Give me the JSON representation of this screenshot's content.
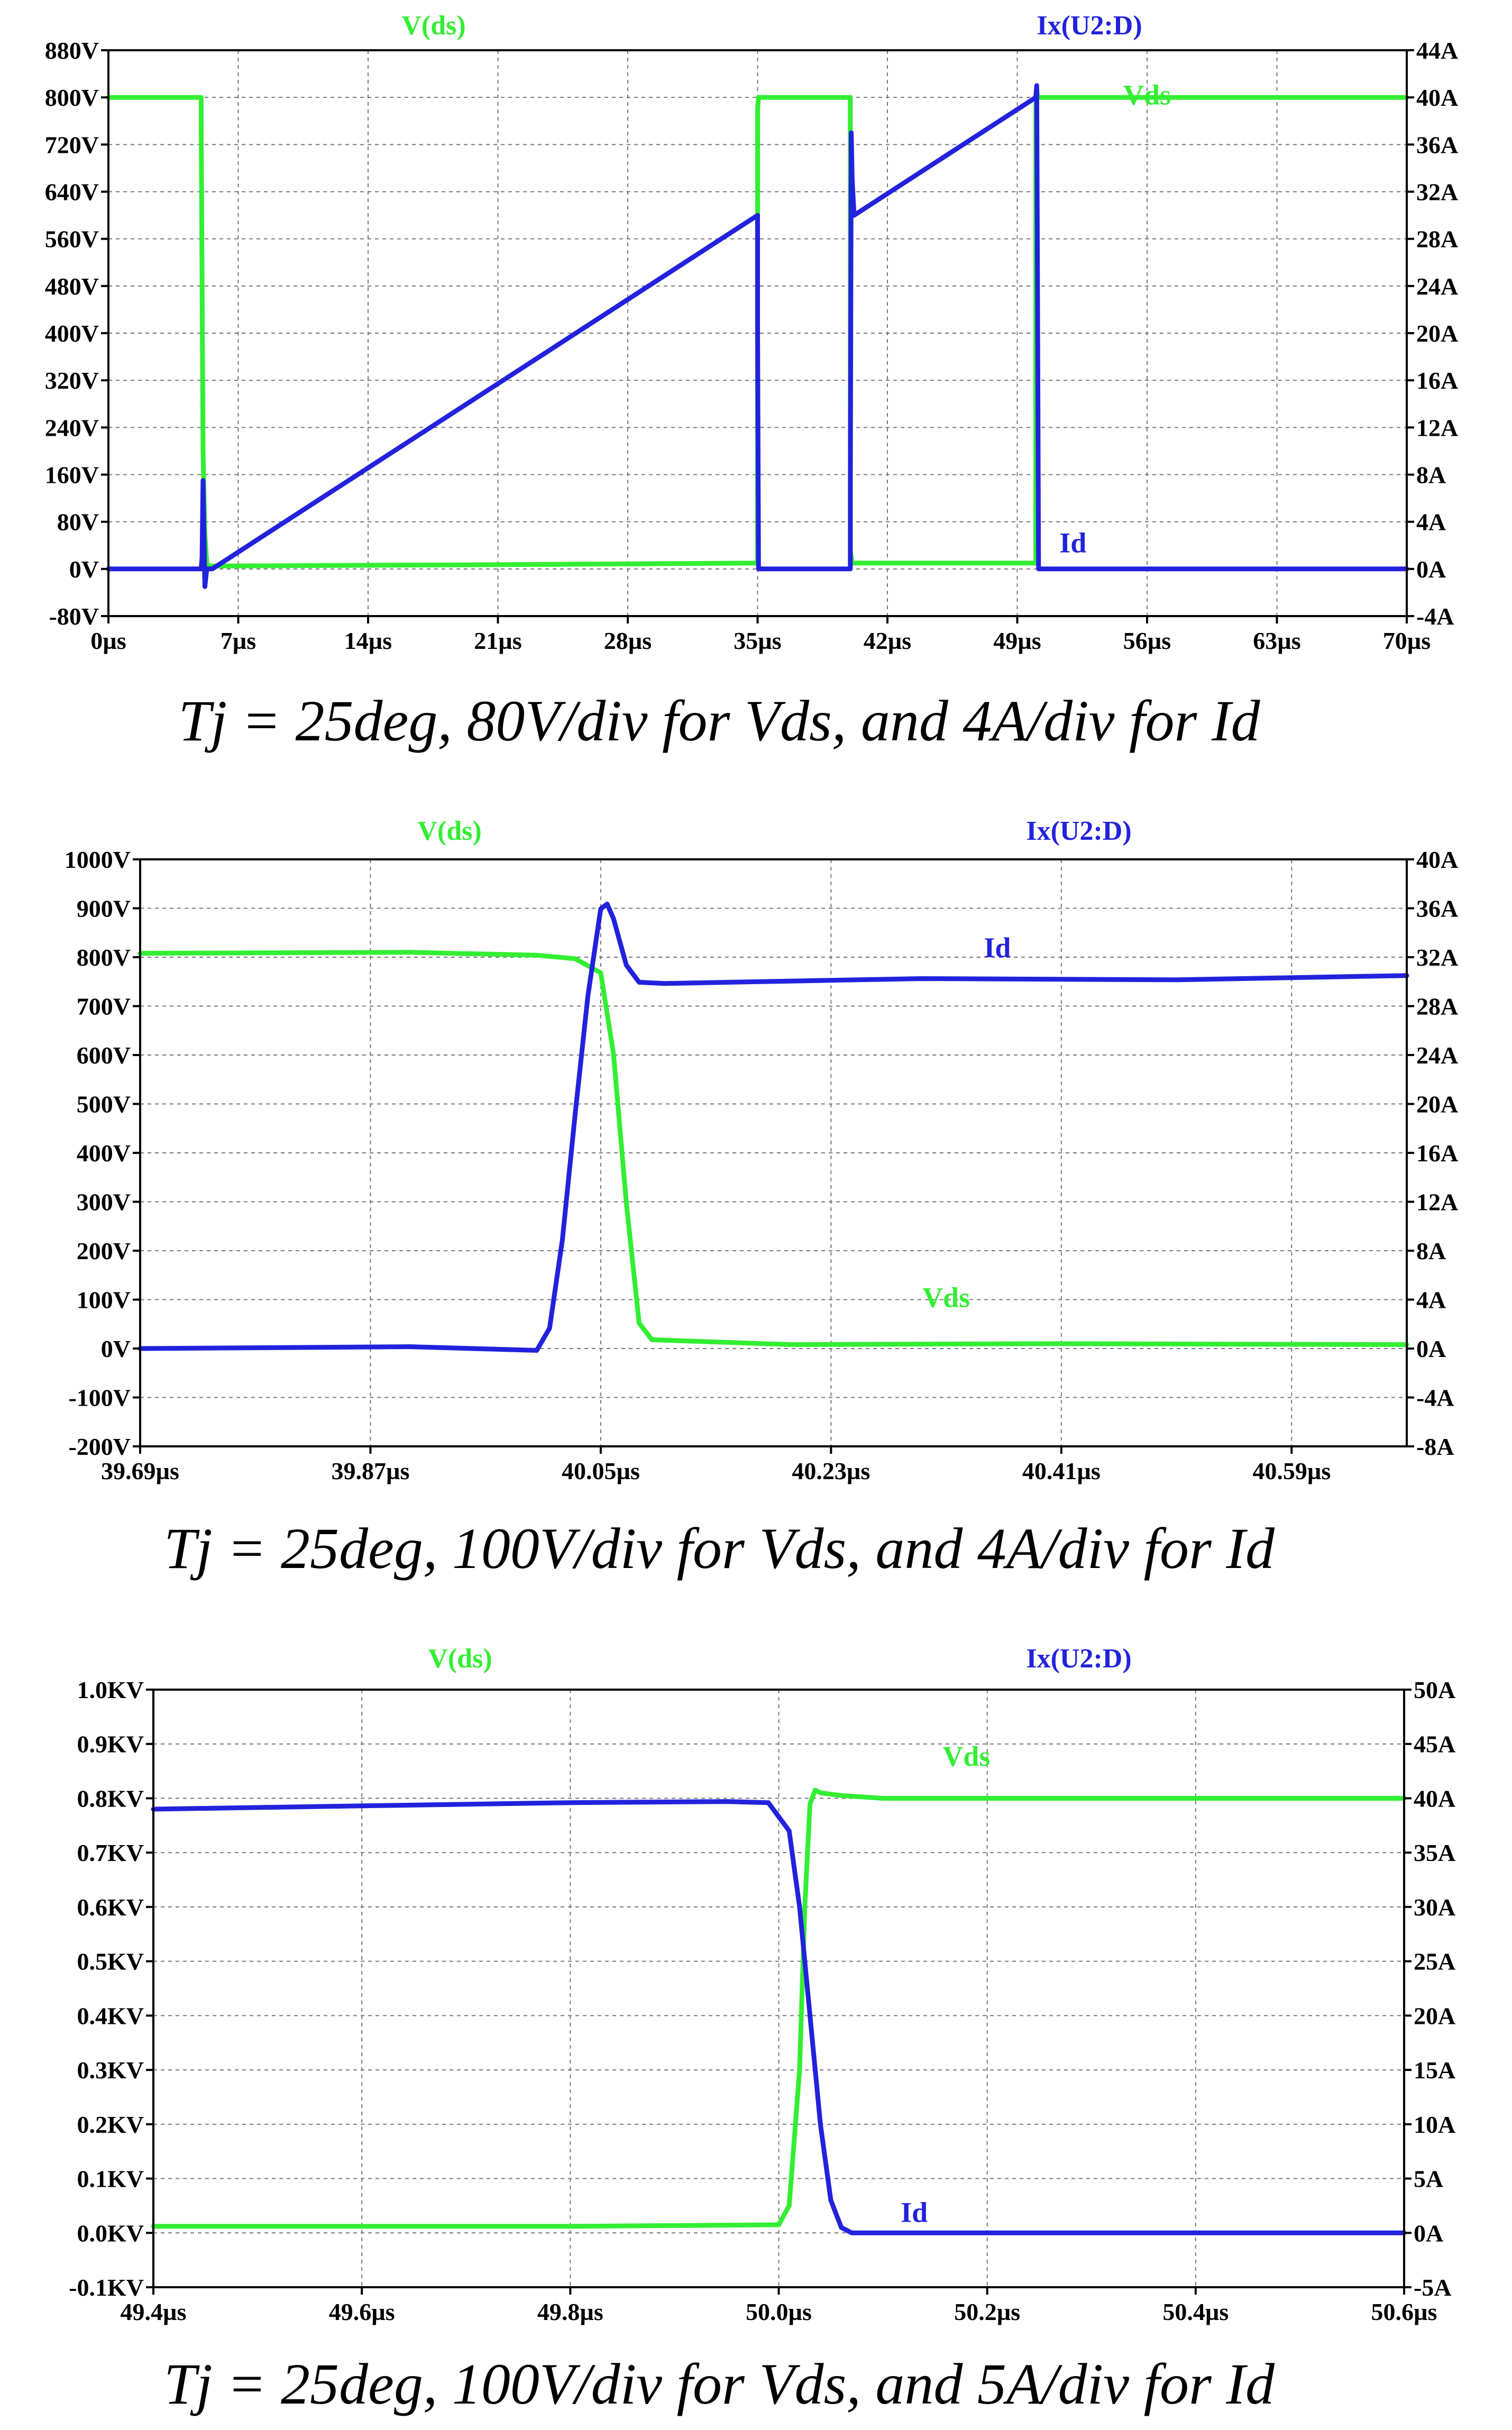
{
  "chart_data": [
    {
      "type": "line",
      "title": "Tj = 25deg, 80V/div for Vds, and 4A/div for Id",
      "legend": [
        "V(ds)",
        "Ix(U2:D)"
      ],
      "colors": {
        "vds": "#33ee33",
        "id": "#2222dd",
        "grid": "#777777",
        "axis": "#000000"
      },
      "x": {
        "min": 0,
        "max": 70,
        "ticks": [
          0,
          7,
          14,
          21,
          28,
          35,
          42,
          49,
          56,
          63,
          70
        ],
        "tick_labels": [
          "0µs",
          "7µs",
          "14µs",
          "21µs",
          "28µs",
          "35µs",
          "42µs",
          "49µs",
          "56µs",
          "63µs",
          "70µs"
        ]
      },
      "y_left": {
        "min": -80,
        "max": 880,
        "ticks": [
          -80,
          0,
          80,
          160,
          240,
          320,
          400,
          480,
          560,
          640,
          720,
          800,
          880
        ],
        "tick_labels": [
          "-80V",
          "0V",
          "80V",
          "160V",
          "240V",
          "320V",
          "400V",
          "480V",
          "560V",
          "640V",
          "720V",
          "800V",
          "880V"
        ]
      },
      "y_right": {
        "min": -4,
        "max": 44,
        "ticks": [
          -4,
          0,
          4,
          8,
          12,
          16,
          20,
          24,
          28,
          32,
          36,
          40,
          44
        ],
        "tick_labels": [
          "-4A",
          "0A",
          "4A",
          "8A",
          "12A",
          "16A",
          "20A",
          "24A",
          "28A",
          "32A",
          "36A",
          "40A",
          "44A"
        ]
      },
      "series": [
        {
          "name": "Vds",
          "axis": "left",
          "x": [
            0,
            5.0,
            5.0,
            5.1,
            5.2,
            5.3,
            5.4,
            6.0,
            20,
            35.0,
            35.0,
            35.05,
            40.0,
            40.0,
            40.1,
            50.0,
            50.0,
            50.05,
            50.1,
            70
          ],
          "y": [
            800,
            800,
            760,
            200,
            60,
            10,
            5,
            5,
            7,
            10,
            780,
            800,
            800,
            30,
            10,
            10,
            780,
            815,
            800,
            800
          ]
        },
        {
          "name": "Id",
          "axis": "right",
          "x": [
            0,
            5.0,
            5.05,
            5.1,
            5.2,
            5.3,
            5.6,
            35.0,
            35.0,
            35.05,
            40.0,
            40.0,
            40.05,
            40.1,
            40.2,
            50.0,
            50.05,
            50.1,
            50.15,
            70
          ],
          "y": [
            0,
            0,
            1,
            7.5,
            -1.5,
            0,
            0,
            30,
            20,
            0,
            0,
            7,
            37,
            33,
            30,
            40,
            41,
            20,
            0,
            0
          ]
        }
      ],
      "annotations": [
        {
          "text": "Vds",
          "x": 56,
          "y": 788,
          "axis": "left",
          "color": "vds"
        },
        {
          "text": "Id",
          "x": 52,
          "y": 1.4,
          "axis": "right",
          "color": "id"
        }
      ]
    },
    {
      "type": "line",
      "title": "Tj = 25deg, 100V/div for Vds, and 4A/div for Id",
      "legend": [
        "V(ds)",
        "Ix(U2:D)"
      ],
      "colors": {
        "vds": "#33ee33",
        "id": "#2222dd",
        "grid": "#777777",
        "axis": "#000000"
      },
      "x": {
        "min": 39.69,
        "max": 40.68,
        "ticks": [
          39.69,
          39.87,
          40.05,
          40.23,
          40.41,
          40.59
        ],
        "tick_labels": [
          "39.69µs",
          "39.87µs",
          "40.05µs",
          "40.23µs",
          "40.41µs",
          "40.59µs"
        ]
      },
      "y_left": {
        "min": -200,
        "max": 1000,
        "ticks": [
          -200,
          -100,
          0,
          100,
          200,
          300,
          400,
          500,
          600,
          700,
          800,
          900,
          1000
        ],
        "tick_labels": [
          "-200V",
          "-100V",
          "0V",
          "100V",
          "200V",
          "300V",
          "400V",
          "500V",
          "600V",
          "700V",
          "800V",
          "900V",
          "1000V"
        ]
      },
      "y_right": {
        "min": -8,
        "max": 40,
        "ticks": [
          -8,
          -4,
          0,
          4,
          8,
          12,
          16,
          20,
          24,
          28,
          32,
          36,
          40
        ],
        "tick_labels": [
          "-8A",
          "-4A",
          "0A",
          "4A",
          "8A",
          "12A",
          "16A",
          "20A",
          "24A",
          "28A",
          "32A",
          "36A",
          "40A"
        ]
      },
      "series": [
        {
          "name": "Vds",
          "axis": "left",
          "x": [
            39.69,
            39.9,
            40.0,
            40.03,
            40.05,
            40.06,
            40.07,
            40.08,
            40.09,
            40.1,
            40.2,
            40.4,
            40.68
          ],
          "y": [
            808,
            808,
            806,
            795,
            770,
            600,
            300,
            50,
            20,
            15,
            10,
            8,
            8
          ],
          "jitter": 2
        },
        {
          "name": "Id",
          "axis": "right",
          "x": [
            39.69,
            39.9,
            40.0,
            40.01,
            40.02,
            40.03,
            40.04,
            40.05,
            40.055,
            40.06,
            40.07,
            40.08,
            40.1,
            40.3,
            40.5,
            40.68
          ],
          "y": [
            0,
            0,
            0,
            1.5,
            9,
            19,
            29,
            35.8,
            36.5,
            35,
            31.5,
            29.8,
            30,
            30.1,
            30.3,
            30.5
          ],
          "jitter": 0.15
        }
      ],
      "annotations": [
        {
          "text": "Id",
          "x": 40.36,
          "y": 32,
          "axis": "right",
          "color": "id"
        },
        {
          "text": "Vds",
          "x": 40.32,
          "y": 85,
          "axis": "left",
          "color": "vds"
        }
      ]
    },
    {
      "type": "line",
      "title": "Tj = 25deg, 100V/div for Vds, and 5A/div for Id",
      "legend": [
        "V(ds)",
        "Ix(U2:D)"
      ],
      "colors": {
        "vds": "#33ee33",
        "id": "#2222dd",
        "grid": "#777777",
        "axis": "#000000"
      },
      "x": {
        "min": 49.4,
        "max": 50.6,
        "ticks": [
          49.4,
          49.6,
          49.8,
          50.0,
          50.2,
          50.4,
          50.6
        ],
        "tick_labels": [
          "49.4µs",
          "49.6µs",
          "49.8µs",
          "50.0µs",
          "50.2µs",
          "50.4µs",
          "50.6µs"
        ]
      },
      "y_left": {
        "min": -0.1,
        "max": 1.0,
        "ticks": [
          -0.1,
          0.0,
          0.1,
          0.2,
          0.3,
          0.4,
          0.5,
          0.6,
          0.7,
          0.8,
          0.9,
          1.0
        ],
        "tick_labels": [
          "-0.1KV",
          "0.0KV",
          "0.1KV",
          "0.2KV",
          "0.3KV",
          "0.4KV",
          "0.5KV",
          "0.6KV",
          "0.7KV",
          "0.8KV",
          "0.9KV",
          "1.0KV"
        ]
      },
      "y_right": {
        "min": -5,
        "max": 50,
        "ticks": [
          -5,
          0,
          5,
          10,
          15,
          20,
          25,
          30,
          35,
          40,
          45,
          50
        ],
        "tick_labels": [
          "-5A",
          "0A",
          "5A",
          "10A",
          "15A",
          "20A",
          "25A",
          "30A",
          "35A",
          "40A",
          "45A",
          "50A"
        ]
      },
      "series": [
        {
          "name": "Vds",
          "axis": "left",
          "x": [
            49.4,
            49.8,
            50.0,
            50.01,
            50.02,
            50.025,
            50.03,
            50.035,
            50.04,
            50.06,
            50.1,
            50.3,
            50.6
          ],
          "y": [
            0.012,
            0.012,
            0.015,
            0.05,
            0.3,
            0.6,
            0.79,
            0.815,
            0.81,
            0.805,
            0.8,
            0.8,
            0.8
          ]
        },
        {
          "name": "Id",
          "axis": "right",
          "x": [
            49.4,
            49.6,
            49.8,
            49.95,
            49.99,
            50.01,
            50.02,
            50.03,
            50.04,
            50.05,
            50.06,
            50.07,
            50.1,
            50.6
          ],
          "y": [
            39,
            39.3,
            39.6,
            39.7,
            39.6,
            37,
            30,
            20,
            10,
            3,
            0.5,
            0,
            0,
            0
          ]
        }
      ],
      "annotations": [
        {
          "text": "Vds",
          "x": 50.18,
          "y": 0.86,
          "axis": "left",
          "color": "vds"
        },
        {
          "text": "Id",
          "x": 50.13,
          "y": 1,
          "axis": "right",
          "color": "id"
        }
      ]
    }
  ]
}
